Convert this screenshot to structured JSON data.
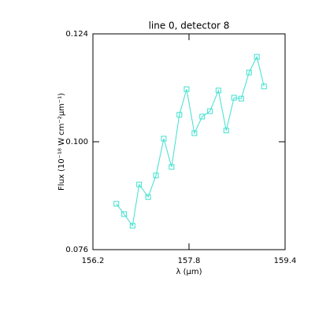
{
  "chart_data": {
    "type": "line",
    "title": "line 0, detector 8",
    "x_label": "λ (μm)",
    "y_label": "Flux (10⁻¹⁸ W cm⁻²μm⁻¹)",
    "x": [
      156.59,
      156.72,
      156.86,
      156.97,
      157.12,
      157.25,
      157.38,
      157.51,
      157.64,
      157.76,
      157.89,
      158.02,
      158.15,
      158.29,
      158.42,
      158.55,
      158.67,
      158.8,
      158.93,
      159.05
    ],
    "series": [
      {
        "color": "#40e0d0",
        "values": [
          0.0862,
          0.0839,
          0.0813,
          0.0905,
          0.0877,
          0.0925,
          0.1007,
          0.0944,
          0.106,
          0.1117,
          0.1019,
          0.1056,
          0.1068,
          0.1114,
          0.1025,
          0.1098,
          0.1096,
          0.1154,
          0.1189,
          0.1123
        ]
      }
    ],
    "xlim": [
      156.2,
      159.4
    ],
    "xticks": [
      156.2,
      157.8,
      159.4
    ],
    "ylim": [
      0.076,
      0.124
    ],
    "yticks": [
      0.076,
      {
        "value": 0.1,
        "label": "0.100"
      },
      0.124
    ],
    "marker": "square"
  }
}
